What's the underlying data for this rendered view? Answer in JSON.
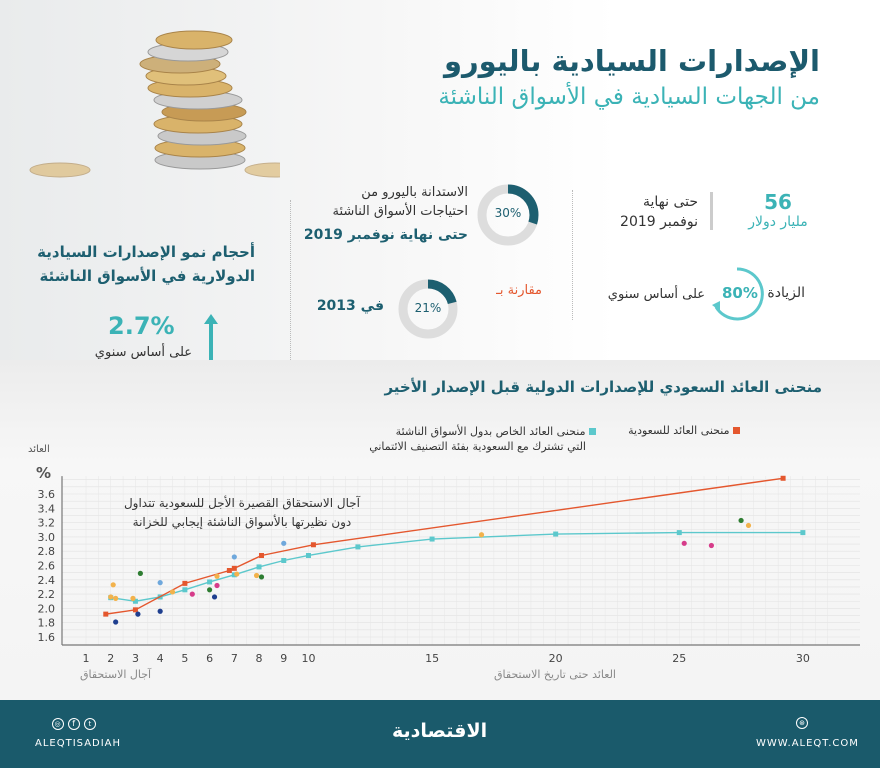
{
  "header": {
    "title": "الإصدارات السيادية باليورو",
    "subtitle": "من الجهات السيادية في الأسواق الناشئة"
  },
  "stats": {
    "total": {
      "value": "56",
      "unit": "مليار دولار",
      "label_line1": "حتى نهاية",
      "label_line2": "نوفمبر 2019"
    },
    "increase": {
      "label": "الزيادة",
      "value": "80%",
      "percent": 80,
      "note": "على أساس سنوي"
    },
    "share": {
      "value": "30%",
      "percent": 30,
      "line1": "الاستدانة باليورو من",
      "line2": "احتياجات الأسواق الناشئة",
      "line3": "حتى نهاية نوفمبر 2019"
    },
    "compare": {
      "label": "مقارنة بـ",
      "value": "21%",
      "percent": 21,
      "year": "في 2013"
    },
    "dollar_growth": {
      "line1": "أحجام نمو الإصدارات السيادية",
      "line2": "الدولارية في الأسواق الناشئة",
      "value": "2.7%",
      "note": "على أساس سنوي"
    }
  },
  "colors": {
    "saudi": "#e4572e",
    "peers": "#5cc8cc",
    "dark_teal": "#1a5a6b",
    "teal": "#3bb3b6"
  },
  "chart_data": {
    "type": "line",
    "title": "منحنى العائد السعودي للإصدارات الدولية قبل الإصدار الأخير",
    "ylabel": "العائد",
    "yunit": "%",
    "xlabel": "آجال الاستحقاق",
    "xlabel2": "العائد حتى تاريخ الاستحقاق",
    "annotation_line1": "آجال الاستحقاق القصيرة الأجل للسعودية تتداول",
    "annotation_line2": "دون نظيرتها بالأسواق الناشئة إيجابي للخزانة",
    "xlim": [
      0,
      31
    ],
    "ylim": [
      1.6,
      3.8
    ],
    "x_ticks": [
      "1",
      "2",
      "3",
      "4",
      "5",
      "6",
      "7",
      "8",
      "9",
      "10",
      "15",
      "20",
      "25",
      "30"
    ],
    "y_ticks": [
      "1.6",
      "1.8",
      "2.0",
      "2.2",
      "2.4",
      "2.6",
      "2.8",
      "3.0",
      "3.2",
      "3.4",
      "3.6"
    ],
    "grid": true,
    "legend_placement": "top-right",
    "series": [
      {
        "name": "منحنى العائد للسعودية",
        "color": "#e4572e",
        "points": [
          [
            1.8,
            1.92
          ],
          [
            3,
            1.98
          ],
          [
            5,
            2.35
          ],
          [
            6.8,
            2.53
          ],
          [
            7,
            2.56
          ],
          [
            8.1,
            2.74
          ],
          [
            10.2,
            2.89
          ],
          [
            29.2,
            3.82
          ]
        ]
      },
      {
        "name": "منحنى العائد الخاص بدول الأسواق الناشئة",
        "name_line2": "التي تشترك مع السعودية بفئة التصنيف الائتماني",
        "color": "#5cc8cc",
        "points": [
          [
            2,
            2.15
          ],
          [
            3,
            2.1
          ],
          [
            4,
            2.16
          ],
          [
            5,
            2.26
          ],
          [
            6,
            2.37
          ],
          [
            7,
            2.47
          ],
          [
            8,
            2.58
          ],
          [
            9,
            2.67
          ],
          [
            10,
            2.74
          ],
          [
            12,
            2.86
          ],
          [
            15,
            2.97
          ],
          [
            20,
            3.04
          ],
          [
            25,
            3.06
          ],
          [
            30,
            3.06
          ]
        ]
      }
    ],
    "scatter": [
      {
        "color": "#f2b24c",
        "points": [
          [
            2.1,
            2.33
          ],
          [
            2,
            2.16
          ],
          [
            2.2,
            2.14
          ],
          [
            2.9,
            2.14
          ],
          [
            4.5,
            2.23
          ],
          [
            6.3,
            2.45
          ],
          [
            7.1,
            2.48
          ],
          [
            7.9,
            2.46
          ],
          [
            17,
            3.03
          ],
          [
            27.8,
            3.16
          ]
        ]
      },
      {
        "color": "#1f3f8f",
        "points": [
          [
            2.2,
            1.81
          ],
          [
            3.1,
            1.92
          ],
          [
            4,
            1.96
          ],
          [
            6.2,
            2.16
          ]
        ]
      },
      {
        "color": "#2e7d32",
        "points": [
          [
            3.2,
            2.49
          ],
          [
            6,
            2.26
          ],
          [
            8.1,
            2.44
          ],
          [
            27.5,
            3.23
          ]
        ]
      },
      {
        "color": "#6fa8dc",
        "points": [
          [
            4,
            2.36
          ],
          [
            7,
            2.72
          ],
          [
            9,
            2.91
          ]
        ]
      },
      {
        "color": "#d63c8a",
        "points": [
          [
            5.3,
            2.2
          ],
          [
            6.3,
            2.32
          ],
          [
            25.2,
            2.91
          ],
          [
            26.3,
            2.88
          ]
        ]
      }
    ]
  },
  "footer": {
    "social": "ALEQTISADIAH",
    "logo": "الاقتصادية",
    "website": "WWW.ALEQT.COM"
  }
}
